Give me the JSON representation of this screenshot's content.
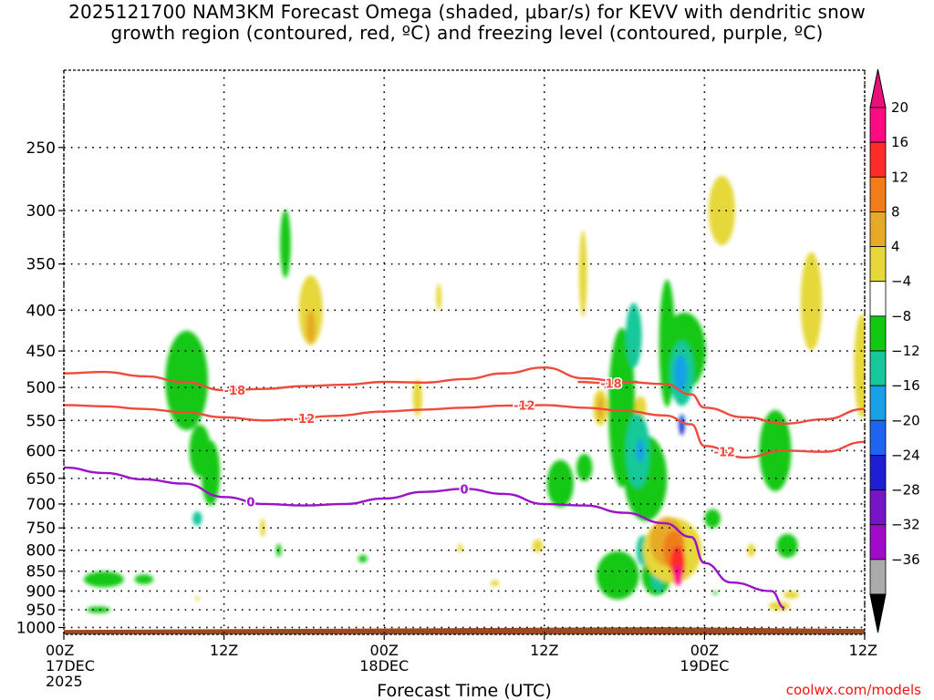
{
  "title_line1": "2025121700 NAM3KM Forecast Omega (shaded, μbar/s) for KEVV with dendritic snow",
  "title_line2": "growth region (contoured, red, ºC) and freezing level (contoured, purple, ºC)",
  "credit": "coolwx.com/models",
  "chart_data": {
    "type": "contour",
    "xlabel": "Forecast Time (UTC)",
    "ylabel": "",
    "x_ticks": [
      {
        "h": 0,
        "label": [
          "00Z",
          "17DEC",
          "2025"
        ]
      },
      {
        "h": 12,
        "label": [
          "12Z"
        ]
      },
      {
        "h": 24,
        "label": [
          "00Z",
          "18DEC"
        ]
      },
      {
        "h": 36,
        "label": [
          "12Z"
        ]
      },
      {
        "h": 48,
        "label": [
          "00Z",
          "19DEC"
        ]
      },
      {
        "h": 60,
        "label": [
          "12Z"
        ]
      }
    ],
    "xlim": [
      0,
      60
    ],
    "y_ticks": [
      250,
      300,
      350,
      400,
      450,
      500,
      550,
      600,
      650,
      700,
      750,
      800,
      850,
      900,
      950,
      1000
    ],
    "ylim_hpa": [
      200,
      1020
    ],
    "y_scale": "log-pressure",
    "grid": true,
    "colorbar": {
      "labels": [
        "20",
        "16",
        "12",
        "8",
        "4",
        "−4",
        "−8",
        "−12",
        "−16",
        "−20",
        "−24",
        "−28",
        "−32",
        "−36"
      ],
      "colors": [
        "#ff0a82",
        "#ff2a2a",
        "#f07d1a",
        "#e6aa28",
        "#e6d83a",
        "#ffffff",
        "#12c812",
        "#19c89a",
        "#19a0e6",
        "#1e64f0",
        "#1e1ed2",
        "#7814c8",
        "#a00ac8",
        "#aaaaaa"
      ],
      "top_arrow": "#e6127a",
      "bottom_arrow": "#000000"
    },
    "ground": {
      "surface_hpa": 1007,
      "color": "#9b4a22"
    },
    "contours": [
      {
        "label": "-18",
        "color": "#f04a3c",
        "points": [
          [
            0,
            480
          ],
          [
            3,
            478
          ],
          [
            6,
            484
          ],
          [
            9,
            492
          ],
          [
            12,
            504
          ],
          [
            15,
            502
          ],
          [
            18,
            498
          ],
          [
            21,
            496
          ],
          [
            24,
            492
          ],
          [
            27,
            493
          ],
          [
            30,
            488
          ],
          [
            33,
            480
          ],
          [
            36,
            472
          ],
          [
            39,
            487
          ],
          [
            42,
            492
          ],
          [
            45,
            495
          ],
          [
            47,
            510
          ],
          [
            48,
            530
          ],
          [
            51,
            545
          ],
          [
            54,
            555
          ],
          [
            57,
            548
          ],
          [
            60,
            532
          ]
        ],
        "label_h": [
          12.8
        ]
      },
      {
        "label": "-18",
        "color": "#f04a3c",
        "points": [
          [
            38.5,
            492
          ],
          [
            41,
            494
          ],
          [
            43,
            492
          ]
        ],
        "label_h": [
          41
        ]
      },
      {
        "label": "-12",
        "color": "#f04a3c",
        "points": [
          [
            0,
            526
          ],
          [
            3,
            528
          ],
          [
            6,
            532
          ],
          [
            9,
            537
          ],
          [
            12,
            545
          ],
          [
            15,
            550
          ],
          [
            17,
            548
          ],
          [
            20,
            543
          ],
          [
            24,
            536
          ],
          [
            27,
            533
          ],
          [
            30,
            530
          ],
          [
            33,
            527
          ],
          [
            36,
            526
          ],
          [
            39,
            530
          ],
          [
            42,
            535
          ],
          [
            45,
            542
          ],
          [
            47,
            556
          ],
          [
            48,
            592
          ],
          [
            51,
            612
          ],
          [
            54,
            600
          ],
          [
            57,
            602
          ],
          [
            60,
            585
          ]
        ],
        "label_h": [
          18,
          34.5,
          49.5
        ]
      },
      {
        "label": "0",
        "color": "#9b12c8",
        "points": [
          [
            0,
            630
          ],
          [
            3,
            640
          ],
          [
            6,
            652
          ],
          [
            9,
            660
          ],
          [
            12,
            686
          ],
          [
            15,
            700
          ],
          [
            18,
            703
          ],
          [
            21,
            700
          ],
          [
            24,
            689
          ],
          [
            27,
            676
          ],
          [
            30,
            670
          ],
          [
            33,
            680
          ],
          [
            36,
            700
          ],
          [
            39,
            703
          ],
          [
            42,
            718
          ],
          [
            45,
            740
          ],
          [
            47,
            770
          ],
          [
            48,
            830
          ],
          [
            50,
            878
          ],
          [
            53,
            900
          ],
          [
            54,
            945
          ]
        ],
        "label_h": [
          14,
          30
        ]
      }
    ],
    "omega_blobs": [
      {
        "c": "#12c812",
        "h": 9.2,
        "p": 490,
        "dh": 1.6,
        "dp": 140
      },
      {
        "c": "#12c812",
        "h": 10.2,
        "p": 600,
        "dh": 0.8,
        "dp": 90
      },
      {
        "c": "#12c812",
        "h": 11.0,
        "p": 640,
        "dh": 0.7,
        "dp": 120
      },
      {
        "c": "#19c89a",
        "h": 10.0,
        "p": 730,
        "dh": 0.35,
        "dp": 30
      },
      {
        "c": "#12c812",
        "h": 16.6,
        "p": 330,
        "dh": 0.4,
        "dp": 65
      },
      {
        "c": "#12c812",
        "h": 3.0,
        "p": 870,
        "dh": 1.5,
        "dp": 40
      },
      {
        "c": "#12c812",
        "h": 6.0,
        "p": 870,
        "dh": 0.7,
        "dp": 25
      },
      {
        "c": "#12c812",
        "h": 2.6,
        "p": 950,
        "dh": 0.9,
        "dp": 18
      },
      {
        "c": "#12c812",
        "h": 22.4,
        "p": 820,
        "dh": 0.35,
        "dp": 18
      },
      {
        "c": "#12c812",
        "h": 16.1,
        "p": 800,
        "dh": 0.2,
        "dp": 30
      },
      {
        "c": "#e6d83a",
        "h": 18.5,
        "p": 400,
        "dh": 0.9,
        "dp": 80
      },
      {
        "c": "#e6aa28",
        "h": 18.5,
        "p": 420,
        "dh": 0.35,
        "dp": 40
      },
      {
        "c": "#e6d83a",
        "h": 14.9,
        "p": 750,
        "dh": 0.2,
        "dp": 40
      },
      {
        "c": "#e6d83a",
        "h": 10.0,
        "p": 920,
        "dh": 0.15,
        "dp": 12
      },
      {
        "c": "#e6d83a",
        "h": 28.1,
        "p": 385,
        "dh": 0.2,
        "dp": 30
      },
      {
        "c": "#e6d83a",
        "h": 26.5,
        "p": 515,
        "dh": 0.35,
        "dp": 55
      },
      {
        "c": "#e6d83a",
        "h": 29.7,
        "p": 795,
        "dh": 0.2,
        "dp": 20
      },
      {
        "c": "#e6d83a",
        "h": 32.3,
        "p": 880,
        "dh": 0.35,
        "dp": 15
      },
      {
        "c": "#e6d83a",
        "h": 35.5,
        "p": 790,
        "dh": 0.4,
        "dp": 30
      },
      {
        "c": "#e6d83a",
        "h": 38.9,
        "p": 360,
        "dh": 0.3,
        "dp": 90
      },
      {
        "c": "#e6d83a",
        "h": 40.2,
        "p": 530,
        "dh": 0.55,
        "dp": 55
      },
      {
        "c": "#e6aa28",
        "h": 40.2,
        "p": 530,
        "dh": 0.25,
        "dp": 35
      },
      {
        "c": "#e6d83a",
        "h": 43.2,
        "p": 530,
        "dh": 0.45,
        "dp": 35
      },
      {
        "c": "#12c812",
        "h": 37.2,
        "p": 660,
        "dh": 1.0,
        "dp": 90
      },
      {
        "c": "#12c812",
        "h": 39.0,
        "p": 630,
        "dh": 0.6,
        "dp": 50
      },
      {
        "c": "#12c812",
        "h": 41.8,
        "p": 530,
        "dh": 1.0,
        "dp": 240
      },
      {
        "c": "#12c812",
        "h": 41.5,
        "p": 860,
        "dh": 1.6,
        "dp": 120
      },
      {
        "c": "#12c812",
        "h": 43.6,
        "p": 650,
        "dh": 1.6,
        "dp": 160
      },
      {
        "c": "#12c812",
        "h": 44.4,
        "p": 860,
        "dh": 1.1,
        "dp": 100
      },
      {
        "c": "#12c812",
        "h": 45.2,
        "p": 440,
        "dh": 0.6,
        "dp": 160
      },
      {
        "c": "#12c812",
        "h": 46.5,
        "p": 450,
        "dh": 1.6,
        "dp": 100
      },
      {
        "c": "#19c89a",
        "h": 42.7,
        "p": 430,
        "dh": 0.6,
        "dp": 80
      },
      {
        "c": "#19c89a",
        "h": 43.0,
        "p": 600,
        "dh": 0.9,
        "dp": 130
      },
      {
        "c": "#19c89a",
        "h": 43.4,
        "p": 800,
        "dh": 0.5,
        "dp": 70
      },
      {
        "c": "#19c89a",
        "h": 44.5,
        "p": 870,
        "dh": 0.5,
        "dp": 60
      },
      {
        "c": "#19c89a",
        "h": 46.3,
        "p": 480,
        "dh": 0.9,
        "dp": 90
      },
      {
        "c": "#19a0e6",
        "h": 46.2,
        "p": 480,
        "dh": 0.5,
        "dp": 50
      },
      {
        "c": "#19a0e6",
        "h": 43.2,
        "p": 600,
        "dh": 0.3,
        "dp": 40
      },
      {
        "c": "#1e64f0",
        "h": 46.3,
        "p": 555,
        "dh": 0.25,
        "dp": 30
      },
      {
        "c": "#1e1ed2",
        "h": 46.3,
        "p": 565,
        "dh": 0.15,
        "dp": 18
      },
      {
        "c": "#e6d83a",
        "h": 45.6,
        "p": 800,
        "dh": 2.2,
        "dp": 150
      },
      {
        "c": "#e6aa28",
        "h": 45.2,
        "p": 780,
        "dh": 1.3,
        "dp": 110
      },
      {
        "c": "#f07d1a",
        "h": 45.7,
        "p": 800,
        "dh": 0.8,
        "dp": 90
      },
      {
        "c": "#ff2a2a",
        "h": 46.0,
        "p": 830,
        "dh": 0.55,
        "dp": 80
      },
      {
        "c": "#ff0a82",
        "h": 46.0,
        "p": 860,
        "dh": 0.35,
        "dp": 50
      },
      {
        "c": "#12c812",
        "h": 48.6,
        "p": 730,
        "dh": 0.6,
        "dp": 40
      },
      {
        "c": "#e6d83a",
        "h": 49.3,
        "p": 300,
        "dh": 1.0,
        "dp": 60
      },
      {
        "c": "#12c812",
        "h": 53.3,
        "p": 600,
        "dh": 1.2,
        "dp": 140
      },
      {
        "c": "#12c812",
        "h": 54.2,
        "p": 790,
        "dh": 0.8,
        "dp": 55
      },
      {
        "c": "#e6d83a",
        "h": 53.6,
        "p": 940,
        "dh": 0.8,
        "dp": 25
      },
      {
        "c": "#e6d83a",
        "h": 54.5,
        "p": 910,
        "dh": 0.6,
        "dp": 20
      },
      {
        "c": "#e6d83a",
        "h": 51.5,
        "p": 800,
        "dh": 0.3,
        "dp": 30
      },
      {
        "c": "#e6d83a",
        "h": 56.0,
        "p": 390,
        "dh": 0.8,
        "dp": 110
      },
      {
        "c": "#e6d83a",
        "h": 59.8,
        "p": 470,
        "dh": 0.6,
        "dp": 140
      },
      {
        "c": "#12c812",
        "h": 48.8,
        "p": 905,
        "dh": 0.2,
        "dp": 8
      }
    ]
  }
}
